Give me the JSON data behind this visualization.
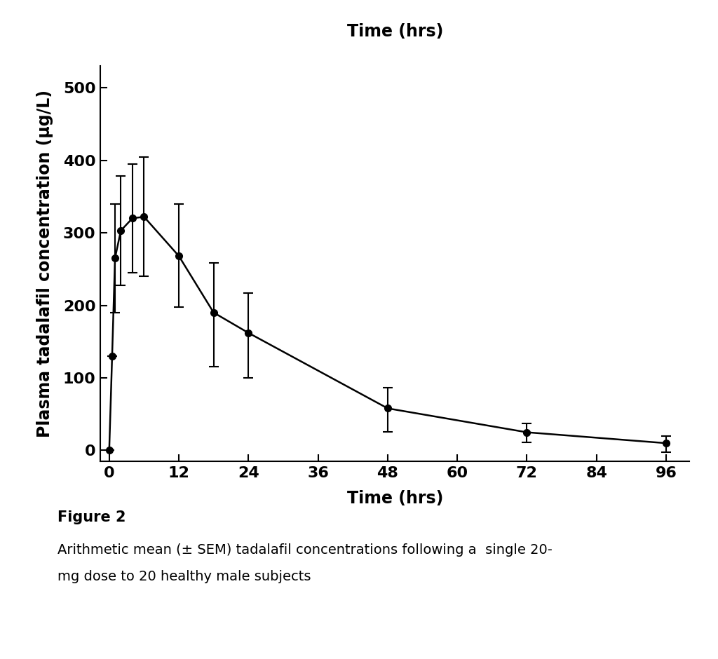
{
  "title": "Time (hrs)",
  "xlabel": "Time (hrs)",
  "ylabel": "Plasma tadalafil concentration (μg/L)",
  "times": [
    0,
    0.5,
    1,
    2,
    4,
    6,
    12,
    18,
    24,
    48,
    72,
    96
  ],
  "concs": [
    0,
    130,
    265,
    303,
    320,
    322,
    268,
    190,
    162,
    58,
    25,
    10
  ],
  "yerr_lower": [
    0,
    0,
    75,
    75,
    75,
    82,
    70,
    75,
    62,
    32,
    14,
    12
  ],
  "yerr_upper": [
    0,
    0,
    75,
    75,
    75,
    82,
    72,
    68,
    55,
    28,
    12,
    10
  ],
  "xticks": [
    0,
    12,
    24,
    36,
    48,
    60,
    72,
    84,
    96
  ],
  "yticks": [
    0,
    100,
    200,
    300,
    400,
    500
  ],
  "ylim": [
    -15,
    530
  ],
  "xlim": [
    -1.5,
    100
  ],
  "line_color": "#000000",
  "marker_color": "#000000",
  "background_color": "#ffffff",
  "title_fontsize": 17,
  "label_fontsize": 17,
  "tick_fontsize": 16,
  "caption_title_fontsize": 15,
  "caption_fontsize": 14,
  "markersize": 7,
  "linewidth": 1.8,
  "elinewidth": 1.5,
  "capsize": 5,
  "capthick": 1.5,
  "figure_caption_title": "Figure 2",
  "figure_caption_line1": "Arithmetic mean (± SEM) tadalafil concentrations following a  single 20-",
  "figure_caption_line2": "mg dose to 20 healthy male subjects"
}
